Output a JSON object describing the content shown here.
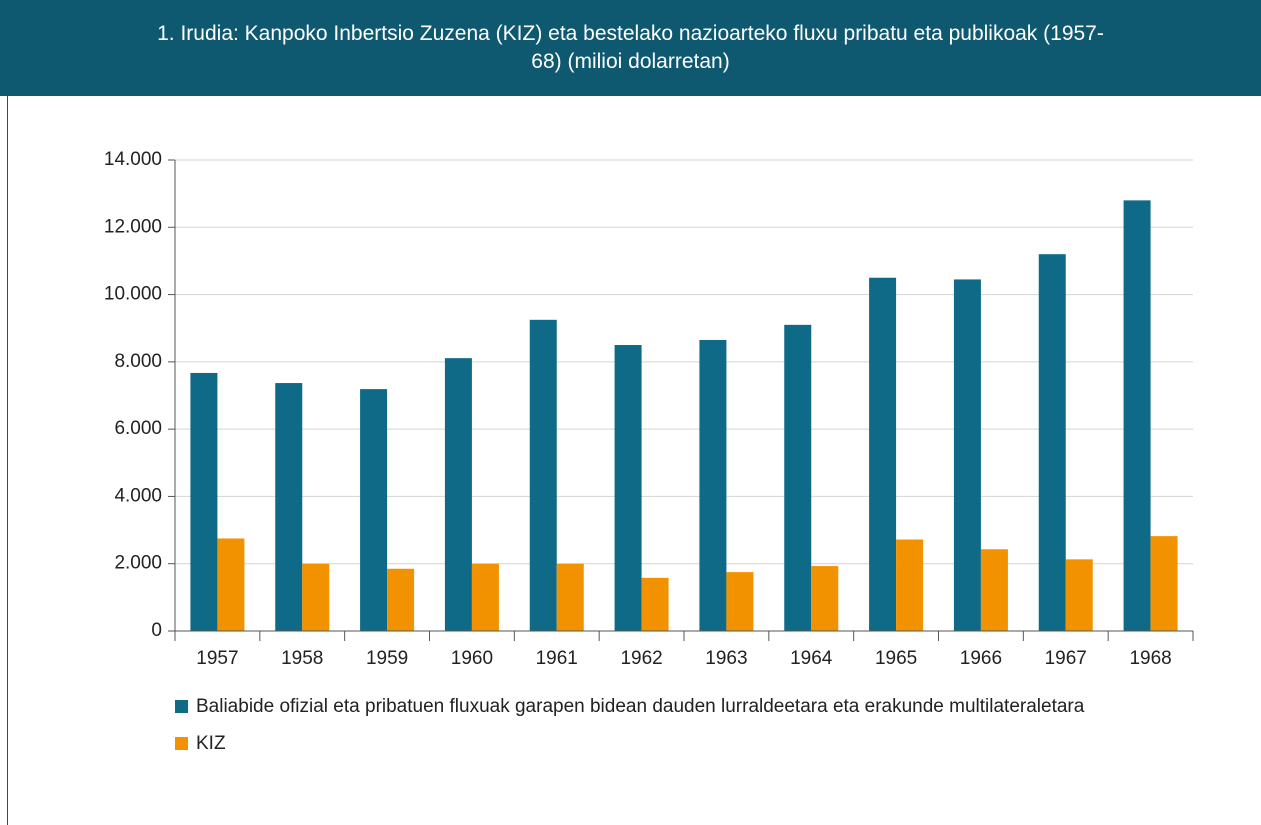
{
  "chart_data": {
    "type": "bar",
    "title": "1. Irudia: Kanpoko Inbertsio Zuzena (KIZ) eta bestelako nazioarteko fluxu pribatu eta publikoak (1957-68) (milioi dolarretan)",
    "categories": [
      "1957",
      "1958",
      "1959",
      "1960",
      "1961",
      "1962",
      "1963",
      "1964",
      "1965",
      "1966",
      "1967",
      "1968"
    ],
    "series": [
      {
        "name": "Baliabide ofizial eta pribatuen fluxuak garapen bidean dauden lurraldeetara eta erakunde multilateraletara",
        "color": "#0e6a87",
        "values": [
          7670,
          7370,
          7190,
          8110,
          9250,
          8500,
          8650,
          9100,
          10500,
          10450,
          11200,
          12800
        ]
      },
      {
        "name": "KIZ",
        "color": "#f39200",
        "values": [
          2750,
          2000,
          1850,
          2000,
          2000,
          1580,
          1750,
          1930,
          2720,
          2430,
          2130,
          2820
        ]
      }
    ],
    "ylim": [
      0,
      14000
    ],
    "yticks": [
      0,
      {
        "value": 2000,
        "label": "2.000"
      },
      {
        "value": 4000,
        "label": "4.000"
      },
      {
        "value": 6000,
        "label": "6.000"
      },
      {
        "value": 8000,
        "label": "8.000"
      },
      {
        "value": 10000,
        "label": "10.000"
      },
      {
        "value": 12000,
        "label": "12.000"
      },
      {
        "value": 14000,
        "label": "14.000"
      }
    ],
    "grid": true
  }
}
